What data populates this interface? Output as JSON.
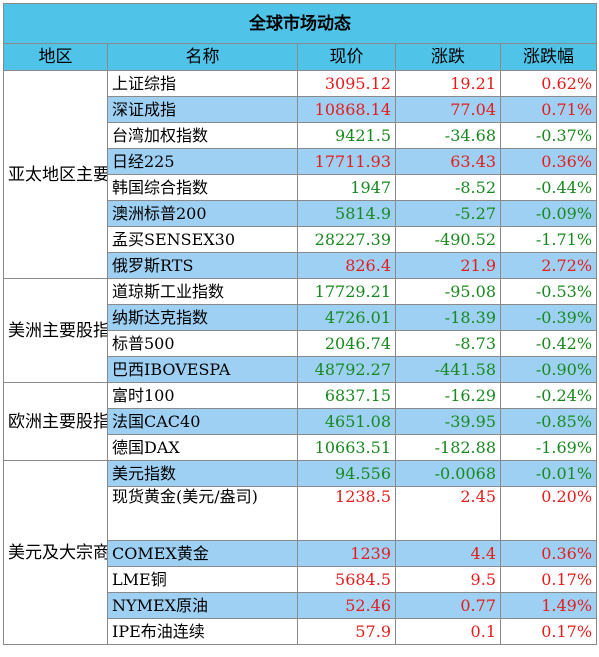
{
  "title": "全球市场动态",
  "headers": [
    "地区",
    "名称",
    "现价",
    "涨跌",
    "涨跌幅"
  ],
  "colors": {
    "header_bg": "#4fc3e8",
    "row_highlight": "#9ed0f3",
    "up": "#e51c1c",
    "down": "#18891e"
  },
  "groups": [
    {
      "region": "亚太地区主要股指",
      "rows": [
        {
          "name": "上证综指",
          "price": "3095.12",
          "change": "19.21",
          "pct": "0.62%",
          "dir": "up",
          "hl": false
        },
        {
          "name": "深证成指",
          "price": "10868.14",
          "change": "77.04",
          "pct": "0.71%",
          "dir": "up",
          "hl": true
        },
        {
          "name": "台湾加权指数",
          "price": "9421.5",
          "change": "-34.68",
          "pct": "-0.37%",
          "dir": "down",
          "hl": false
        },
        {
          "name": "日经225",
          "price": "17711.93",
          "change": "63.43",
          "pct": "0.36%",
          "dir": "up",
          "hl": true
        },
        {
          "name": "韩国综合指数",
          "price": "1947",
          "change": "-8.52",
          "pct": "-0.44%",
          "dir": "down",
          "hl": false
        },
        {
          "name": "澳洲标普200",
          "price": "5814.9",
          "change": "-5.27",
          "pct": "-0.09%",
          "dir": "down",
          "hl": true
        },
        {
          "name": "孟买SENSEX30",
          "price": "28227.39",
          "change": "-490.52",
          "pct": "-1.71%",
          "dir": "down",
          "hl": false
        },
        {
          "name": "俄罗斯RTS",
          "price": "826.4",
          "change": "21.9",
          "pct": "2.72%",
          "dir": "up",
          "hl": true
        }
      ]
    },
    {
      "region": "美洲主要股指",
      "rows": [
        {
          "name": "道琼斯工业指数",
          "price": "17729.21",
          "change": "-95.08",
          "pct": "-0.53%",
          "dir": "down",
          "hl": false
        },
        {
          "name": "纳斯达克指数",
          "price": "4726.01",
          "change": "-18.39",
          "pct": "-0.39%",
          "dir": "down",
          "hl": true
        },
        {
          "name": "标普500",
          "price": "2046.74",
          "change": "-8.73",
          "pct": "-0.42%",
          "dir": "down",
          "hl": false
        },
        {
          "name": "巴西IBOVESPA",
          "price": "48792.27",
          "change": "-441.58",
          "pct": "-0.90%",
          "dir": "down",
          "hl": true
        }
      ]
    },
    {
      "region": "欧洲主要股指",
      "rows": [
        {
          "name": "富时100",
          "price": "6837.15",
          "change": "-16.29",
          "pct": "-0.24%",
          "dir": "down",
          "hl": false
        },
        {
          "name": "法国CAC40",
          "price": "4651.08",
          "change": "-39.95",
          "pct": "-0.85%",
          "dir": "down",
          "hl": true
        },
        {
          "name": "德国DAX",
          "price": "10663.51",
          "change": "-182.88",
          "pct": "-1.69%",
          "dir": "down",
          "hl": false
        }
      ]
    },
    {
      "region": "美元及大宗商品",
      "rows": [
        {
          "name": "美元指数",
          "price": "94.556",
          "change": "-0.0068",
          "pct": "-0.01%",
          "dir": "down",
          "hl": true
        },
        {
          "name": "现货黄金(美元/盎司)",
          "price": "1238.5",
          "change": "2.45",
          "pct": "0.20%",
          "dir": "up",
          "hl": false,
          "tall": true
        },
        {
          "name": "COMEX黄金",
          "price": "1239",
          "change": "4.4",
          "pct": "0.36%",
          "dir": "up",
          "hl": true
        },
        {
          "name": "LME铜",
          "price": "5684.5",
          "change": "9.5",
          "pct": "0.17%",
          "dir": "up",
          "hl": false
        },
        {
          "name": "NYMEX原油",
          "price": "52.46",
          "change": "0.77",
          "pct": "1.49%",
          "dir": "up",
          "hl": true
        },
        {
          "name": "IPE布油连续",
          "price": "57.9",
          "change": "0.1",
          "pct": "0.17%",
          "dir": "up",
          "hl": false
        }
      ]
    }
  ]
}
